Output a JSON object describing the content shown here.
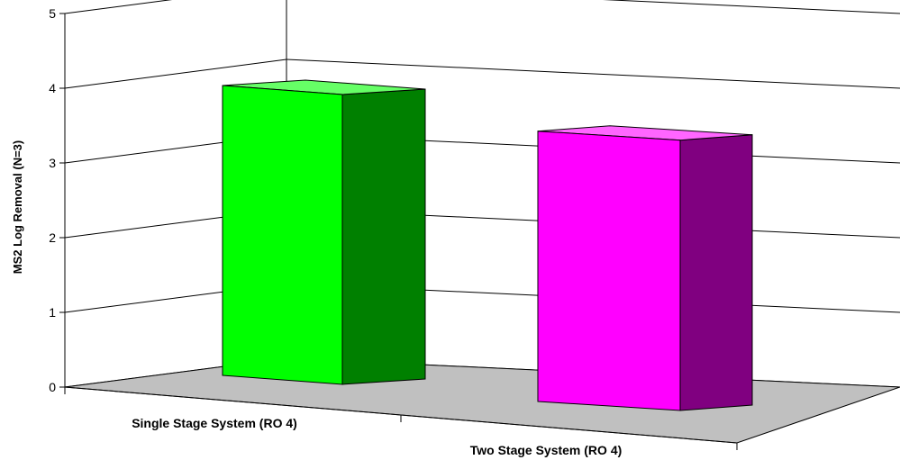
{
  "chart_data": {
    "type": "bar",
    "title": "",
    "xlabel": "",
    "ylabel": "MS2 Log Removal (N=3)",
    "ylim": [
      0,
      5
    ],
    "yticks": [
      0,
      1,
      2,
      3,
      4,
      5
    ],
    "grid": true,
    "categories": [
      "Single Stage System (RO 4)",
      "Two Stage System (RO 4)"
    ],
    "values": [
      4.0,
      4.1
    ],
    "colors": [
      {
        "front": "#00ff00",
        "side": "#008000",
        "top": "#66ff66"
      },
      {
        "front": "#ff00ff",
        "side": "#800080",
        "top": "#ff66ff"
      }
    ],
    "floor_color": "#c0c0c0",
    "style": "3d-column"
  }
}
